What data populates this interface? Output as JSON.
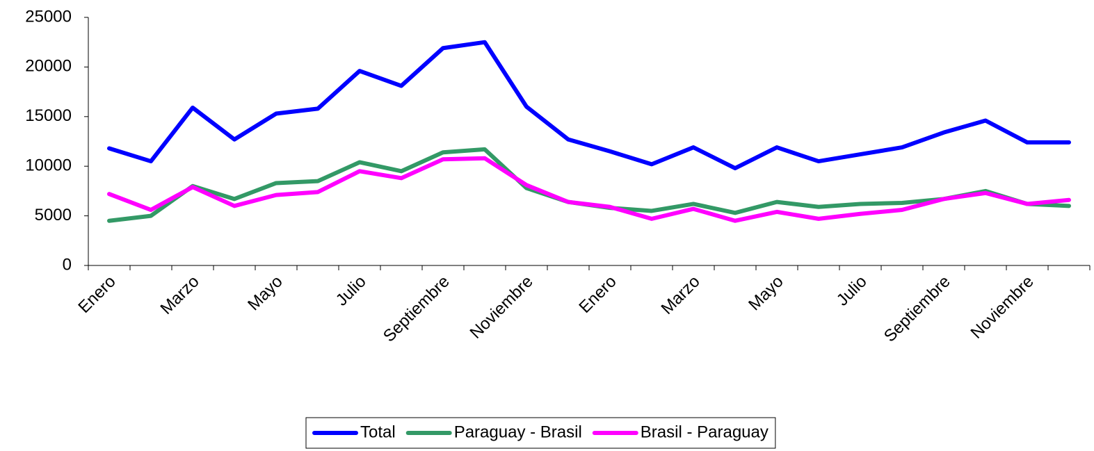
{
  "chart_data": {
    "type": "line",
    "categories": [
      "Enero",
      null,
      "Marzo",
      null,
      "Mayo",
      null,
      "Julio",
      null,
      "Septiembre",
      null,
      "Noviembre",
      null,
      "Enero",
      null,
      "Marzo",
      null,
      "Mayo",
      null,
      "Julio",
      null,
      "Septiembre",
      null,
      "Noviembre",
      null
    ],
    "series": [
      {
        "name": "Total",
        "color": "#0000ff",
        "values": [
          11800,
          10500,
          15900,
          12700,
          15300,
          15800,
          19600,
          18100,
          21900,
          22500,
          16000,
          12700,
          11500,
          10200,
          11900,
          9800,
          11900,
          10500,
          11200,
          11900,
          13400,
          14600,
          12400,
          12400
        ]
      },
      {
        "name": "Paraguay - Brasil",
        "color": "#339966",
        "values": [
          4500,
          5000,
          8000,
          6700,
          8300,
          8500,
          10400,
          9500,
          11400,
          11700,
          7800,
          6400,
          5800,
          5500,
          6200,
          5300,
          6400,
          5900,
          6200,
          6300,
          6700,
          7500,
          6200,
          6000
        ]
      },
      {
        "name": "Brasil - Paraguay",
        "color": "#ff00ff",
        "values": [
          7200,
          5600,
          7900,
          6000,
          7100,
          7400,
          9500,
          8800,
          10700,
          10800,
          8100,
          6400,
          5900,
          4700,
          5700,
          4500,
          5400,
          4700,
          5200,
          5600,
          6700,
          7300,
          6200,
          6600
        ]
      }
    ],
    "ylim": [
      0,
      25000
    ],
    "yticks": [
      0,
      5000,
      10000,
      15000,
      20000,
      25000
    ],
    "grid": false,
    "legend": "bottom"
  }
}
